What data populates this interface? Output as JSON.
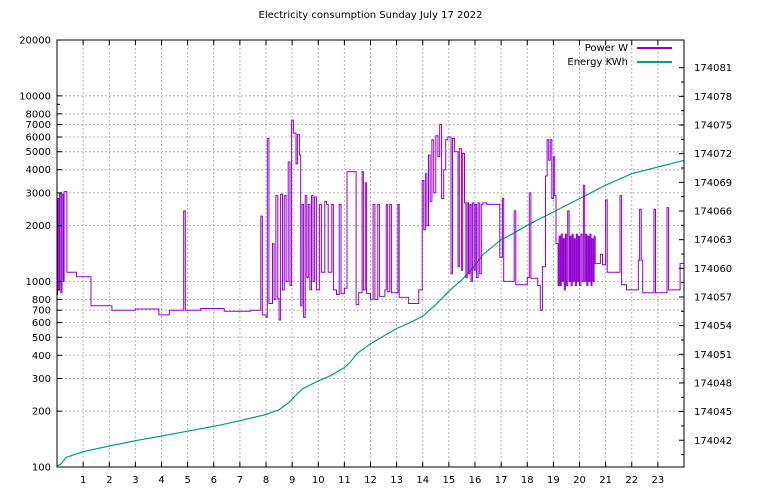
{
  "title": "Electricity consumption Sunday July 17 2022",
  "legend": [
    {
      "label": "Power W",
      "color": "#9400d3"
    },
    {
      "label": "Energy KWh",
      "color": "#00a07e"
    }
  ],
  "colors": {
    "grid": "#b4b4b4",
    "border": "#000000",
    "background": "#ffffff"
  },
  "chart_data": {
    "type": "line",
    "title": "Electricity consumption Sunday July 17 2022",
    "x_axis": {
      "min": 0,
      "max": 24,
      "tick_labels": [
        1,
        2,
        3,
        4,
        5,
        6,
        7,
        8,
        9,
        10,
        11,
        12,
        13,
        14,
        15,
        16,
        17,
        18,
        19,
        20,
        21,
        22,
        23
      ],
      "grid": true
    },
    "y_left_axis": {
      "scale": "log",
      "min": 100,
      "max": 20000,
      "tick_labels": [
        100,
        200,
        300,
        400,
        500,
        600,
        700,
        800,
        1000,
        2000,
        3000,
        4000,
        5000,
        6000,
        7000,
        8000,
        10000,
        20000
      ],
      "minor_ticks": [
        900,
        9000
      ],
      "grid_values": [
        200,
        300,
        400,
        500,
        600,
        700,
        800,
        1000,
        2000,
        3000,
        4000,
        5000,
        6000,
        7000,
        8000,
        10000
      ]
    },
    "y_right_axis": {
      "scale": "linear",
      "min": 174039.2,
      "max": 174083.9,
      "tick_values": [
        174042,
        174045,
        174048,
        174051,
        174054,
        174057,
        174060,
        174063,
        174066,
        174069,
        174072,
        174075,
        174078,
        174081
      ],
      "minor_step": 1.5
    },
    "series": [
      {
        "name": "Power W",
        "axis": "left",
        "style": "steps",
        "color": "#9400d3",
        "points": [
          [
            0.0,
            850
          ],
          [
            0.02,
            2800
          ],
          [
            0.06,
            900
          ],
          [
            0.1,
            3000
          ],
          [
            0.15,
            870
          ],
          [
            0.19,
            2950
          ],
          [
            0.24,
            1000
          ],
          [
            0.27,
            3050
          ],
          [
            0.38,
            1120
          ],
          [
            0.75,
            1060
          ],
          [
            1.3,
            740
          ],
          [
            2.1,
            700
          ],
          [
            3.0,
            710
          ],
          [
            3.9,
            660
          ],
          [
            4.3,
            700
          ],
          [
            4.85,
            2400
          ],
          [
            4.91,
            700
          ],
          [
            5.5,
            715
          ],
          [
            6.4,
            690
          ],
          [
            7.4,
            700
          ],
          [
            7.8,
            2250
          ],
          [
            7.86,
            660
          ],
          [
            8.0,
            640
          ],
          [
            8.05,
            5900
          ],
          [
            8.11,
            760
          ],
          [
            8.25,
            1600
          ],
          [
            8.31,
            800
          ],
          [
            8.38,
            2900
          ],
          [
            8.45,
            810
          ],
          [
            8.5,
            620
          ],
          [
            8.56,
            2950
          ],
          [
            8.63,
            900
          ],
          [
            8.7,
            2900
          ],
          [
            8.77,
            1000
          ],
          [
            8.85,
            4400
          ],
          [
            8.92,
            950
          ],
          [
            8.98,
            7400
          ],
          [
            9.05,
            6300
          ],
          [
            9.15,
            4300
          ],
          [
            9.2,
            6200
          ],
          [
            9.28,
            4800
          ],
          [
            9.33,
            740
          ],
          [
            9.38,
            2600
          ],
          [
            9.44,
            640
          ],
          [
            9.5,
            2900
          ],
          [
            9.56,
            1050
          ],
          [
            9.62,
            2600
          ],
          [
            9.68,
            900
          ],
          [
            9.74,
            2900
          ],
          [
            9.8,
            1000
          ],
          [
            9.86,
            2850
          ],
          [
            9.93,
            900
          ],
          [
            10.05,
            2600
          ],
          [
            10.12,
            1120
          ],
          [
            10.25,
            2700
          ],
          [
            10.32,
            2600
          ],
          [
            10.38,
            1120
          ],
          [
            10.52,
            2600
          ],
          [
            10.58,
            900
          ],
          [
            10.7,
            850
          ],
          [
            10.8,
            2600
          ],
          [
            10.87,
            860
          ],
          [
            11.0,
            920
          ],
          [
            11.1,
            3900
          ],
          [
            11.45,
            750
          ],
          [
            11.55,
            870
          ],
          [
            11.68,
            3900
          ],
          [
            11.73,
            900
          ],
          [
            11.8,
            3400
          ],
          [
            11.85,
            860
          ],
          [
            12.0,
            800
          ],
          [
            12.1,
            2600
          ],
          [
            12.17,
            800
          ],
          [
            12.28,
            2600
          ],
          [
            12.35,
            830
          ],
          [
            12.55,
            900
          ],
          [
            12.6,
            2600
          ],
          [
            12.66,
            880
          ],
          [
            12.74,
            2600
          ],
          [
            12.8,
            870
          ],
          [
            13.05,
            2600
          ],
          [
            13.1,
            820
          ],
          [
            13.45,
            760
          ],
          [
            13.85,
            900
          ],
          [
            13.98,
            3500
          ],
          [
            14.04,
            1900
          ],
          [
            14.1,
            3800
          ],
          [
            14.16,
            2000
          ],
          [
            14.22,
            4800
          ],
          [
            14.28,
            2700
          ],
          [
            14.35,
            5800
          ],
          [
            14.42,
            3000
          ],
          [
            14.5,
            6100
          ],
          [
            14.58,
            4700
          ],
          [
            14.65,
            7000
          ],
          [
            14.72,
            2800
          ],
          [
            14.8,
            4000
          ],
          [
            14.88,
            5800
          ],
          [
            14.96,
            6000
          ],
          [
            15.08,
            1100
          ],
          [
            15.14,
            5900
          ],
          [
            15.22,
            5000
          ],
          [
            15.35,
            1200
          ],
          [
            15.4,
            5200
          ],
          [
            15.48,
            1150
          ],
          [
            15.53,
            4900
          ],
          [
            15.6,
            2650
          ],
          [
            15.65,
            1050
          ],
          [
            15.7,
            2650
          ],
          [
            15.75,
            1100
          ],
          [
            15.8,
            2600
          ],
          [
            15.85,
            1000
          ],
          [
            15.9,
            2650
          ],
          [
            15.96,
            1150
          ],
          [
            16.01,
            2600
          ],
          [
            16.06,
            1050
          ],
          [
            16.12,
            2650
          ],
          [
            16.18,
            1100
          ],
          [
            16.24,
            2600
          ],
          [
            16.3,
            2650
          ],
          [
            16.45,
            2600
          ],
          [
            16.95,
            1350
          ],
          [
            17.05,
            2800
          ],
          [
            17.1,
            1000
          ],
          [
            17.5,
            2400
          ],
          [
            17.56,
            960
          ],
          [
            18.0,
            1050
          ],
          [
            18.08,
            3000
          ],
          [
            18.14,
            1040
          ],
          [
            18.4,
            950
          ],
          [
            18.5,
            700
          ],
          [
            18.58,
            1200
          ],
          [
            18.7,
            3700
          ],
          [
            18.76,
            5800
          ],
          [
            18.82,
            4500
          ],
          [
            18.88,
            5800
          ],
          [
            18.94,
            2800
          ],
          [
            19.0,
            4700
          ],
          [
            19.05,
            2900
          ],
          [
            19.1,
            1600
          ],
          [
            19.18,
            950
          ],
          [
            19.22,
            1750
          ],
          [
            19.26,
            950
          ],
          [
            19.3,
            1800
          ],
          [
            19.34,
            1000
          ],
          [
            19.38,
            1700
          ],
          [
            19.42,
            900
          ],
          [
            19.46,
            1800
          ],
          [
            19.5,
            950
          ],
          [
            19.55,
            2400
          ],
          [
            19.6,
            1000
          ],
          [
            19.64,
            1750
          ],
          [
            19.68,
            950
          ],
          [
            19.72,
            1800
          ],
          [
            19.76,
            1000
          ],
          [
            19.8,
            1700
          ],
          [
            19.84,
            950
          ],
          [
            19.88,
            1800
          ],
          [
            19.92,
            1000
          ],
          [
            19.96,
            1750
          ],
          [
            20.0,
            950
          ],
          [
            20.05,
            1800
          ],
          [
            20.1,
            1000
          ],
          [
            20.15,
            3300
          ],
          [
            20.2,
            1000
          ],
          [
            20.24,
            1800
          ],
          [
            20.28,
            950
          ],
          [
            20.32,
            1750
          ],
          [
            20.36,
            1000
          ],
          [
            20.4,
            1800
          ],
          [
            20.44,
            950
          ],
          [
            20.48,
            1700
          ],
          [
            20.52,
            1000
          ],
          [
            20.56,
            1750
          ],
          [
            20.6,
            1250
          ],
          [
            20.8,
            1400
          ],
          [
            20.88,
            1230
          ],
          [
            21.0,
            2750
          ],
          [
            21.06,
            1120
          ],
          [
            21.55,
            2900
          ],
          [
            21.61,
            960
          ],
          [
            21.8,
            900
          ],
          [
            22.25,
            1300
          ],
          [
            22.3,
            2450
          ],
          [
            22.36,
            1300
          ],
          [
            22.42,
            870
          ],
          [
            22.85,
            2450
          ],
          [
            22.91,
            870
          ],
          [
            23.35,
            2500
          ],
          [
            23.41,
            900
          ],
          [
            23.85,
            1250
          ],
          [
            24.0,
            1250
          ]
        ]
      },
      {
        "name": "Energy KWh",
        "axis": "right",
        "style": "line",
        "color": "#00a07e",
        "points": [
          [
            0,
            174039.3
          ],
          [
            0.15,
            174039.5
          ],
          [
            0.35,
            174040.2
          ],
          [
            1,
            174040.8
          ],
          [
            2,
            174041.4
          ],
          [
            3,
            174041.95
          ],
          [
            4,
            174042.45
          ],
          [
            5,
            174042.95
          ],
          [
            6,
            174043.45
          ],
          [
            7,
            174044.05
          ],
          [
            8,
            174044.7
          ],
          [
            8.5,
            174045.2
          ],
          [
            8.9,
            174046.0
          ],
          [
            9.1,
            174046.6
          ],
          [
            9.4,
            174047.4
          ],
          [
            10,
            174048.2
          ],
          [
            10.5,
            174048.8
          ],
          [
            11,
            174049.6
          ],
          [
            11.2,
            174050.1
          ],
          [
            11.5,
            174051.1
          ],
          [
            12,
            174052.1
          ],
          [
            12.5,
            174052.9
          ],
          [
            13,
            174053.7
          ],
          [
            13.5,
            174054.3
          ],
          [
            14,
            174055.0
          ],
          [
            14.5,
            174056.2
          ],
          [
            15,
            174057.6
          ],
          [
            15.5,
            174058.8
          ],
          [
            16,
            174060.3
          ],
          [
            16.3,
            174061.4
          ],
          [
            17,
            174063.0
          ],
          [
            17.3,
            174063.4
          ],
          [
            18,
            174064.5
          ],
          [
            19,
            174065.9
          ],
          [
            20,
            174067.3
          ],
          [
            21,
            174068.7
          ],
          [
            22,
            174069.9
          ],
          [
            23,
            174070.6
          ],
          [
            24,
            174071.3
          ]
        ]
      }
    ]
  }
}
